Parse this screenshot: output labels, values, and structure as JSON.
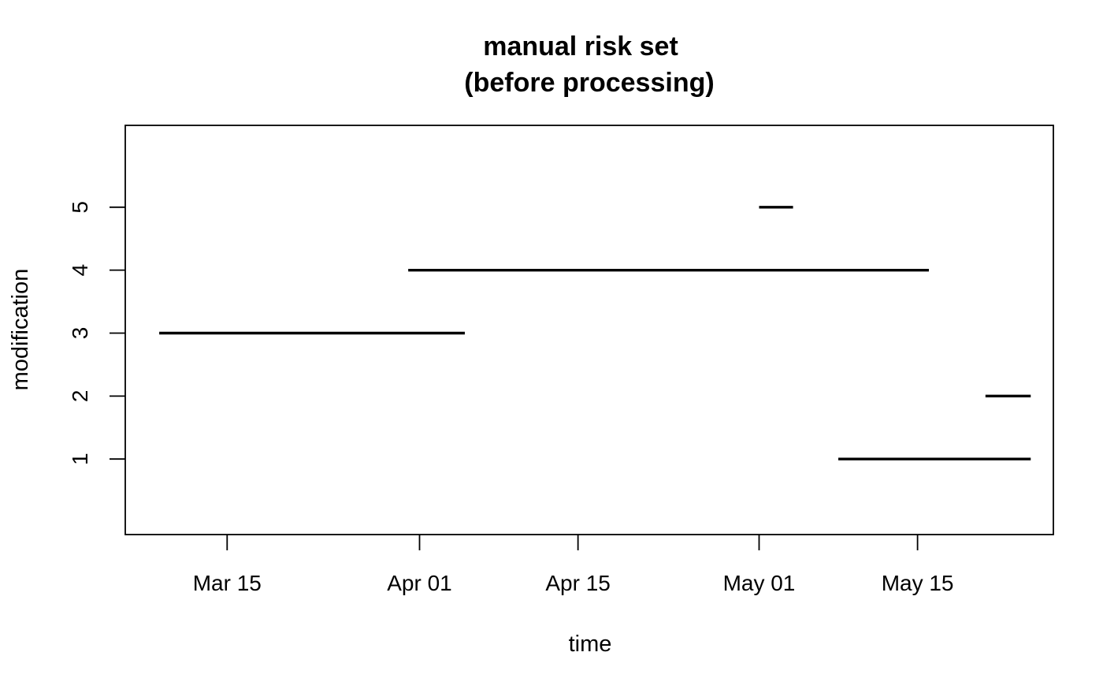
{
  "chart_data": {
    "type": "segment",
    "title": "manual risk set",
    "subtitle": "(before processing)",
    "xlabel": "time",
    "ylabel": "modification",
    "x_axis": {
      "type": "date",
      "range": [
        "2021-03-06",
        "2021-05-27"
      ],
      "ticks": [
        {
          "value": "2021-03-15",
          "label": "Mar 15"
        },
        {
          "value": "2021-04-01",
          "label": "Apr 01"
        },
        {
          "value": "2021-04-15",
          "label": "Apr 15"
        },
        {
          "value": "2021-05-01",
          "label": "May 01"
        },
        {
          "value": "2021-05-15",
          "label": "May 15"
        }
      ]
    },
    "y_axis": {
      "range": [
        -0.2,
        6.3
      ],
      "ticks": [
        {
          "value": 1,
          "label": "1"
        },
        {
          "value": 2,
          "label": "2"
        },
        {
          "value": 3,
          "label": "3"
        },
        {
          "value": 4,
          "label": "4"
        },
        {
          "value": 5,
          "label": "5"
        }
      ]
    },
    "segments": [
      {
        "y": 3,
        "start": "2021-03-09",
        "end": "2021-04-05"
      },
      {
        "y": 4,
        "start": "2021-03-31",
        "end": "2021-05-16"
      },
      {
        "y": 5,
        "start": "2021-05-01",
        "end": "2021-05-04"
      },
      {
        "y": 1,
        "start": "2021-05-08",
        "end": "2021-05-25"
      },
      {
        "y": 2,
        "start": "2021-05-21",
        "end": "2021-05-25"
      }
    ],
    "grid": false,
    "legend": "none",
    "line_color": "#000000"
  }
}
